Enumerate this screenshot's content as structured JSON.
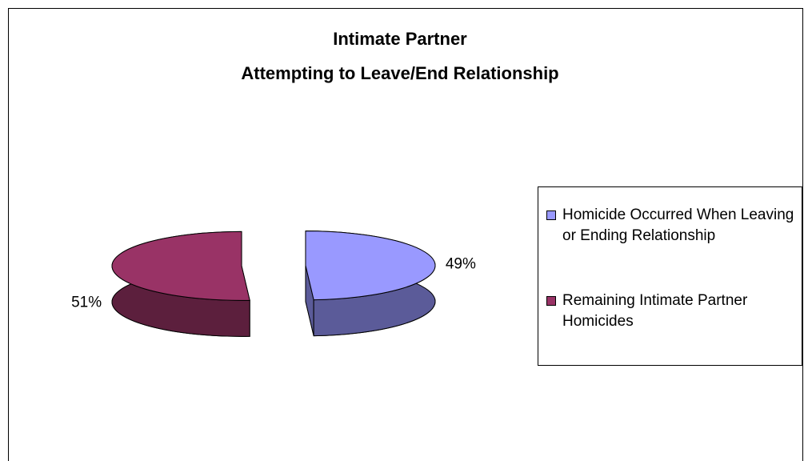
{
  "chart_data": {
    "type": "pie",
    "title": "Intimate Partner",
    "subtitle": "Attempting to Leave/End Relationship",
    "categories": [
      "Homicide Occurred When Leaving or Ending Relationship",
      "Remaining Intimate Partner Homicides"
    ],
    "values": [
      49,
      51
    ],
    "value_labels": [
      "49%",
      "51%"
    ],
    "colors": [
      "#9999ff",
      "#993366"
    ],
    "side_colors": [
      "#5b5b99",
      "#5c1f3d"
    ],
    "legend": "right"
  }
}
